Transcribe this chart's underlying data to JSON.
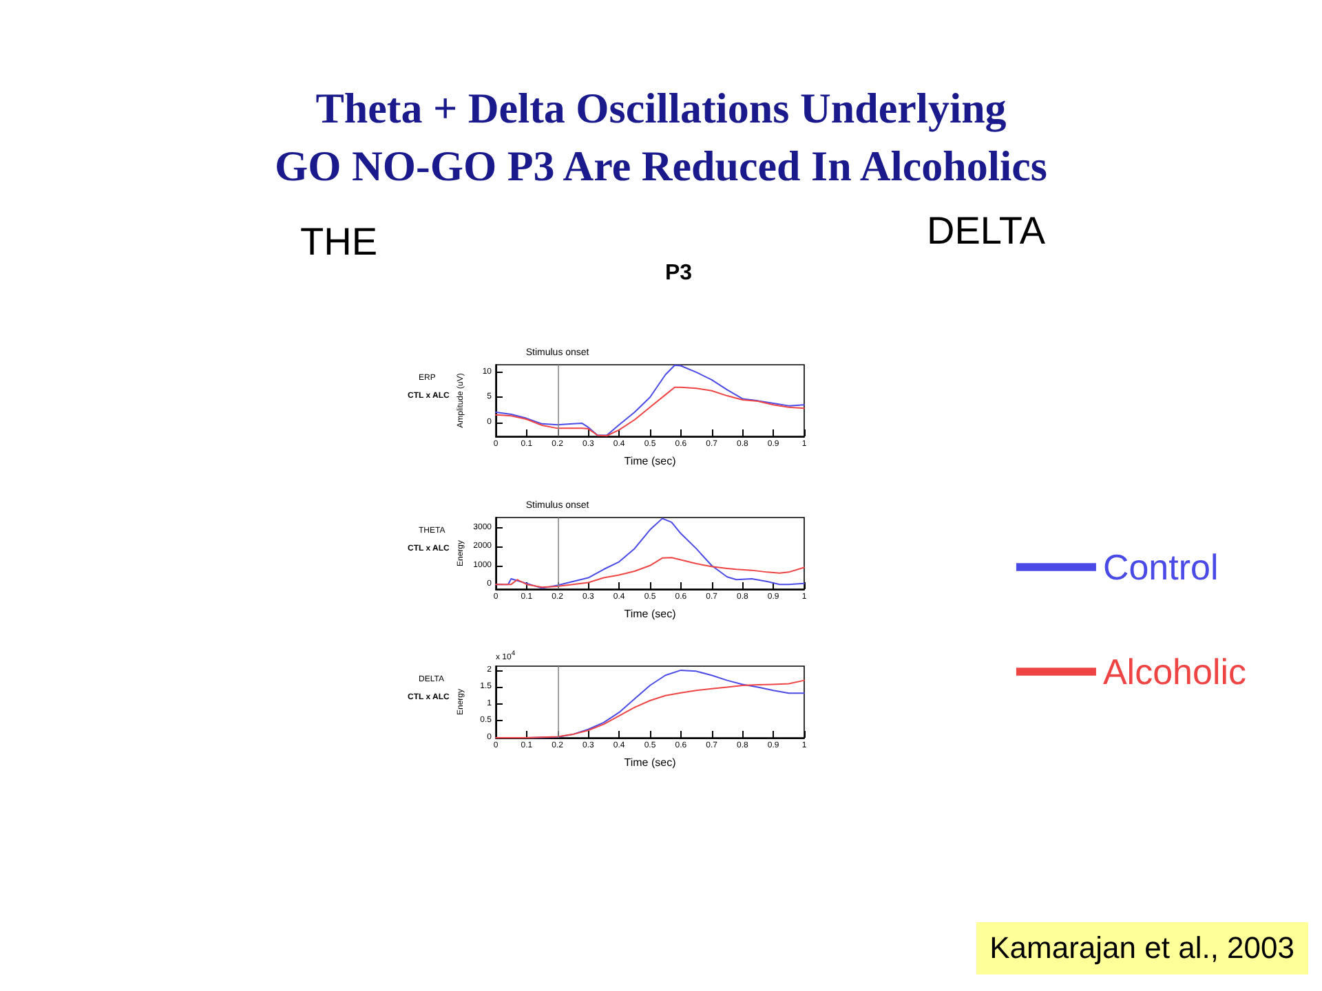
{
  "chart_data": [
    {
      "type": "other",
      "title": "Theta + Delta Oscillations Underlying\nGO NO-GO P3 Are Reduced In Alcoholics",
      "annotations": [
        "THE",
        "DELTA",
        "P3",
        "Kamarajan et al., 2003"
      ]
    },
    {
      "type": "line",
      "title": "ERP",
      "xlabel": "Time (sec)",
      "ylabel": "Amplitude (uV)",
      "xlim": [
        0,
        1
      ],
      "xticks": [
        0,
        0.1,
        0.2,
        0.3,
        0.4,
        0.5,
        0.6,
        0.7,
        0.8,
        0.9,
        1
      ],
      "ylim": [
        -2.8,
        11.5
      ],
      "yticks": [
        0,
        5,
        10
      ],
      "grid": false,
      "legend": false,
      "annotations": [
        "CTL x ALC"
      ],
      "ref_lines": [
        {
          "axis": "x",
          "value": 0.2,
          "label": "Stimulus onset"
        }
      ],
      "x": [
        0,
        0.05,
        0.1,
        0.15,
        0.2,
        0.25,
        0.28,
        0.3,
        0.33,
        0.36,
        0.4,
        0.45,
        0.5,
        0.55,
        0.58,
        0.6,
        0.65,
        0.7,
        0.75,
        0.8,
        0.85,
        0.9,
        0.95,
        1
      ],
      "series": [
        {
          "color": "#4a4ae6",
          "values": [
            2,
            1.6,
            0.8,
            -0.3,
            -0.5,
            -0.3,
            -0.2,
            -1,
            -2.6,
            -2.6,
            -0.5,
            2,
            5,
            9.5,
            11.4,
            11.3,
            10,
            8.5,
            6.5,
            4.7,
            4.3,
            3.8,
            3.3,
            3.5
          ]
        },
        {
          "color": "#ee4444",
          "values": [
            1.5,
            1.3,
            0.6,
            -0.6,
            -1.2,
            -1.2,
            -1.2,
            -1.3,
            -2.6,
            -2.7,
            -1.5,
            0.5,
            3,
            5.5,
            7,
            7,
            6.8,
            6.3,
            5.3,
            4.5,
            4.2,
            3.5,
            3,
            2.8
          ]
        }
      ]
    },
    {
      "type": "line",
      "title": "THETA",
      "xlabel": "Time (sec)",
      "ylabel": "Energy",
      "xlim": [
        0,
        1
      ],
      "xticks": [
        0,
        0.1,
        0.2,
        0.3,
        0.4,
        0.5,
        0.6,
        0.7,
        0.8,
        0.9,
        1
      ],
      "ylim": [
        -250,
        3550
      ],
      "yticks": [
        0,
        1000,
        2000,
        3000
      ],
      "grid": false,
      "legend": "right",
      "annotations": [
        "CTL x ALC"
      ],
      "ref_lines": [
        {
          "axis": "x",
          "value": 0.2,
          "label": "Stimulus onset"
        }
      ],
      "x": [
        0,
        0.04,
        0.05,
        0.07,
        0.1,
        0.15,
        0.2,
        0.25,
        0.3,
        0.35,
        0.4,
        0.45,
        0.5,
        0.54,
        0.57,
        0.6,
        0.65,
        0.7,
        0.75,
        0.78,
        0.83,
        0.88,
        0.92,
        0.95,
        1
      ],
      "series": [
        {
          "name": "Control",
          "color": "#4a4ae6",
          "values": [
            0,
            0,
            300,
            200,
            50,
            -200,
            -50,
            150,
            350,
            800,
            1200,
            1900,
            2900,
            3500,
            3300,
            2700,
            1900,
            1000,
            400,
            250,
            300,
            150,
            0,
            0,
            50
          ]
        },
        {
          "name": "Alcoholic",
          "color": "#ee4444",
          "values": [
            0,
            0,
            0,
            250,
            0,
            -150,
            -100,
            0,
            100,
            350,
            500,
            700,
            1000,
            1400,
            1420,
            1300,
            1100,
            950,
            850,
            800,
            750,
            650,
            600,
            650,
            900
          ]
        }
      ]
    },
    {
      "type": "line",
      "title": "DELTA",
      "xlabel": "Time (sec)",
      "ylabel": "Energy",
      "xlim": [
        0,
        1
      ],
      "xticks": [
        0,
        0.1,
        0.2,
        0.3,
        0.4,
        0.5,
        0.6,
        0.7,
        0.8,
        0.9,
        1
      ],
      "ylim": [
        0,
        2.12
      ],
      "yticks": [
        0,
        0.5,
        1,
        1.5,
        2
      ],
      "grid": false,
      "legend": false,
      "annotations": [
        "CTL x ALC",
        "x 10$^{4}$"
      ],
      "ref_lines": [
        {
          "axis": "x",
          "value": 0.2
        }
      ],
      "x": [
        0,
        0.1,
        0.2,
        0.25,
        0.3,
        0.35,
        0.4,
        0.45,
        0.5,
        0.55,
        0.6,
        0.65,
        0.7,
        0.75,
        0.8,
        0.85,
        0.9,
        0.95,
        1
      ],
      "series": [
        {
          "color": "#4a4ae6",
          "values": [
            0,
            0,
            0.02,
            0.1,
            0.25,
            0.45,
            0.75,
            1.15,
            1.55,
            1.85,
            2,
            1.97,
            1.85,
            1.7,
            1.58,
            1.5,
            1.4,
            1.32,
            1.32
          ]
        },
        {
          "color": "#ee4444",
          "values": [
            0,
            0,
            0.03,
            0.1,
            0.22,
            0.4,
            0.65,
            0.9,
            1.1,
            1.25,
            1.33,
            1.4,
            1.45,
            1.5,
            1.55,
            1.57,
            1.58,
            1.6,
            1.7
          ]
        }
      ]
    }
  ]
}
